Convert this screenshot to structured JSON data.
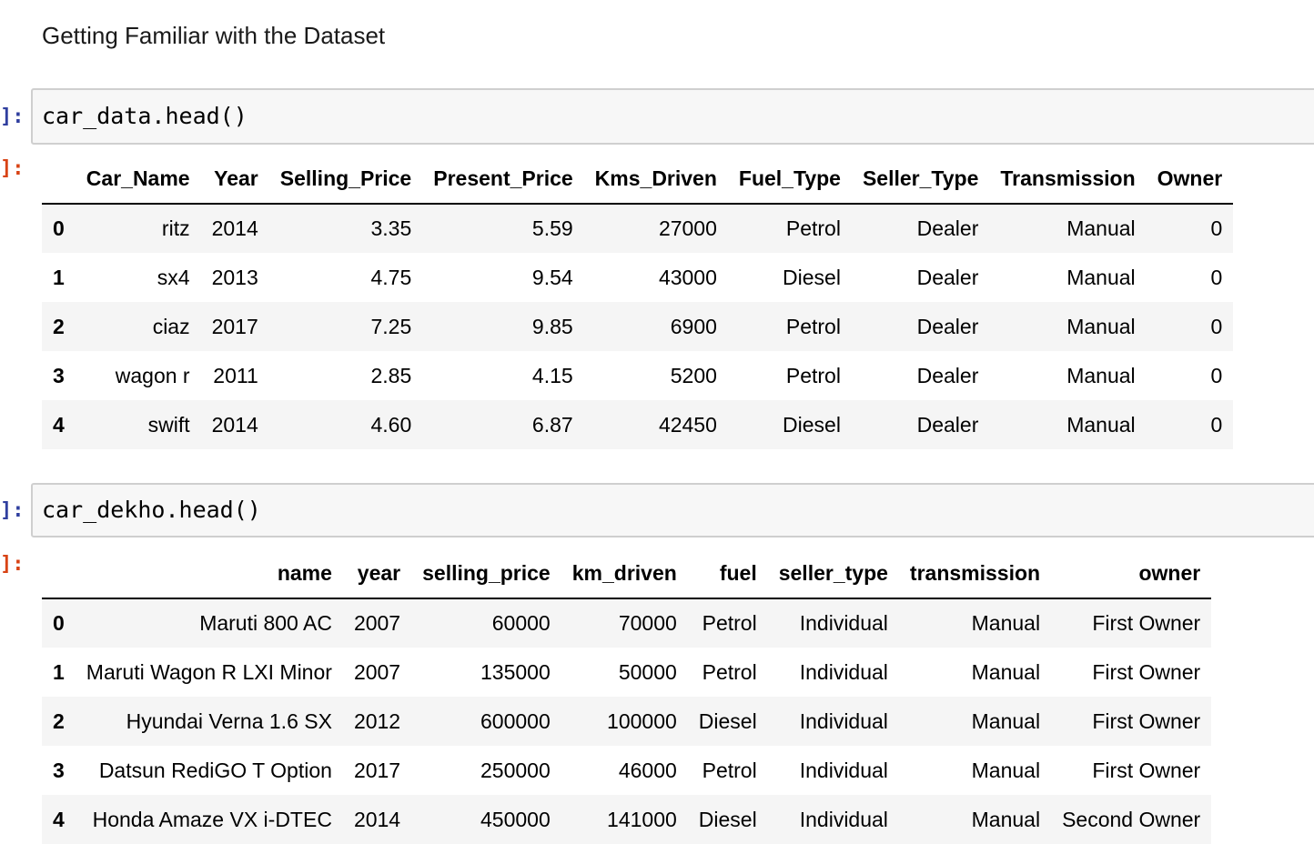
{
  "markdown": {
    "heading": "Getting Familiar with the Dataset"
  },
  "prompts": {
    "in": "]:",
    "out": "]:"
  },
  "cell1": {
    "code": "car_data.head()",
    "columns": [
      "",
      "Car_Name",
      "Year",
      "Selling_Price",
      "Present_Price",
      "Kms_Driven",
      "Fuel_Type",
      "Seller_Type",
      "Transmission",
      "Owner"
    ],
    "rows": [
      [
        "0",
        "ritz",
        "2014",
        "3.35",
        "5.59",
        "27000",
        "Petrol",
        "Dealer",
        "Manual",
        "0"
      ],
      [
        "1",
        "sx4",
        "2013",
        "4.75",
        "9.54",
        "43000",
        "Diesel",
        "Dealer",
        "Manual",
        "0"
      ],
      [
        "2",
        "ciaz",
        "2017",
        "7.25",
        "9.85",
        "6900",
        "Petrol",
        "Dealer",
        "Manual",
        "0"
      ],
      [
        "3",
        "wagon r",
        "2011",
        "2.85",
        "4.15",
        "5200",
        "Petrol",
        "Dealer",
        "Manual",
        "0"
      ],
      [
        "4",
        "swift",
        "2014",
        "4.60",
        "6.87",
        "42450",
        "Diesel",
        "Dealer",
        "Manual",
        "0"
      ]
    ]
  },
  "cell2": {
    "code": "car_dekho.head()",
    "columns": [
      "",
      "name",
      "year",
      "selling_price",
      "km_driven",
      "fuel",
      "seller_type",
      "transmission",
      "owner"
    ],
    "rows": [
      [
        "0",
        "Maruti 800 AC",
        "2007",
        "60000",
        "70000",
        "Petrol",
        "Individual",
        "Manual",
        "First Owner"
      ],
      [
        "1",
        "Maruti Wagon R LXI Minor",
        "2007",
        "135000",
        "50000",
        "Petrol",
        "Individual",
        "Manual",
        "First Owner"
      ],
      [
        "2",
        "Hyundai Verna 1.6 SX",
        "2012",
        "600000",
        "100000",
        "Diesel",
        "Individual",
        "Manual",
        "First Owner"
      ],
      [
        "3",
        "Datsun RediGO T Option",
        "2017",
        "250000",
        "46000",
        "Petrol",
        "Individual",
        "Manual",
        "First Owner"
      ],
      [
        "4",
        "Honda Amaze VX i-DTEC",
        "2014",
        "450000",
        "141000",
        "Diesel",
        "Individual",
        "Manual",
        "Second Owner"
      ]
    ]
  }
}
